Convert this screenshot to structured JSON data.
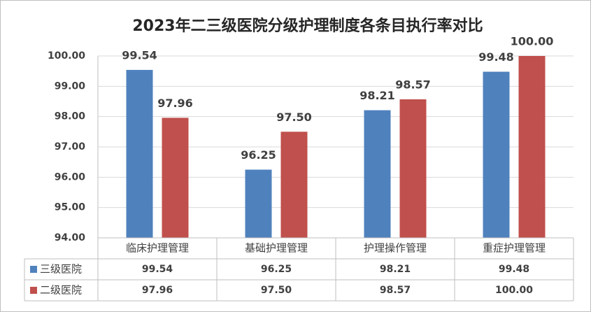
{
  "chart_data": {
    "type": "bar",
    "title": "2023年二三级医院分级护理制度各条目执行率对比",
    "categories": [
      "临床护理管理",
      "基础护理管理",
      "护理操作管理",
      "重症护理管理"
    ],
    "series": [
      {
        "name": "三级医院",
        "color": "#4f81bd",
        "values": [
          99.54,
          96.25,
          98.21,
          99.48
        ],
        "value_labels": [
          "99.54",
          "96.25",
          "98.21",
          "99.48"
        ]
      },
      {
        "name": "二级医院",
        "color": "#c0504d",
        "values": [
          97.96,
          97.5,
          98.57,
          100
        ],
        "value_labels": [
          "97.96",
          "97.50",
          "98.57",
          "100.00"
        ]
      }
    ],
    "ylim": [
      94,
      100
    ],
    "yticks": [
      {
        "value": 94,
        "label": "94.00"
      },
      {
        "value": 95,
        "label": "95.00"
      },
      {
        "value": 96,
        "label": "96.00"
      },
      {
        "value": 97,
        "label": "97.00"
      },
      {
        "value": 98,
        "label": "98.00"
      },
      {
        "value": 99,
        "label": "99.00"
      },
      {
        "value": 100,
        "label": "100.00"
      }
    ],
    "grid": true,
    "data_table": true
  }
}
